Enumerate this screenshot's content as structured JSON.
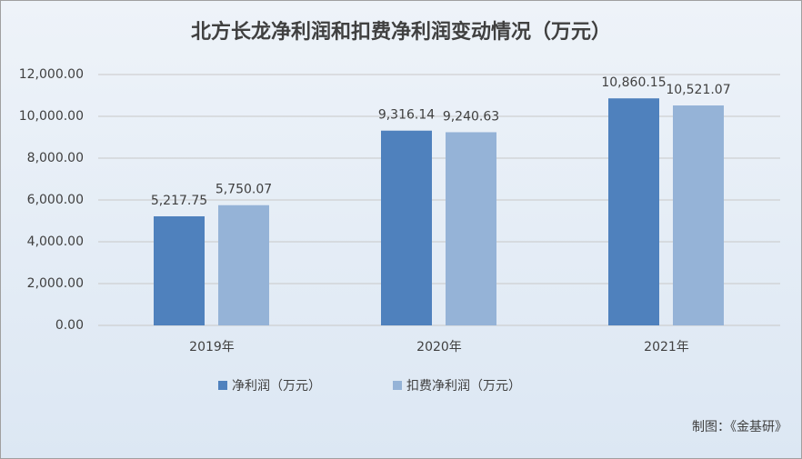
{
  "chart_data": {
    "type": "bar",
    "title": "北方长龙净利润和扣费净利润变动情况（万元）",
    "categories": [
      "2019年",
      "2020年",
      "2021年"
    ],
    "series": [
      {
        "name": "净利润（万元）",
        "color": "#4f81bd",
        "values": [
          5217.75,
          9316.14,
          10860.15
        ],
        "value_labels": [
          "5,217.75",
          "9,316.14",
          "10,860.15"
        ]
      },
      {
        "name": "扣费净利润（万元）",
        "color": "#95b3d7",
        "values": [
          5750.07,
          9240.63,
          10521.07
        ],
        "value_labels": [
          "5,750.07",
          "9,240.63",
          "10,521.07"
        ]
      }
    ],
    "ylim": [
      0,
      12000
    ],
    "yticks": [
      {
        "value": 0,
        "label": "0.00"
      },
      {
        "value": 2000,
        "label": "2,000.00"
      },
      {
        "value": 4000,
        "label": "4,000.00"
      },
      {
        "value": 6000,
        "label": "6,000.00"
      },
      {
        "value": 8000,
        "label": "8,000.00"
      },
      {
        "value": 10000,
        "label": "10,000.00"
      },
      {
        "value": 12000,
        "label": "12,000.00"
      }
    ],
    "grid": true,
    "legend": "bottom",
    "source": "制图：《金基研》"
  }
}
